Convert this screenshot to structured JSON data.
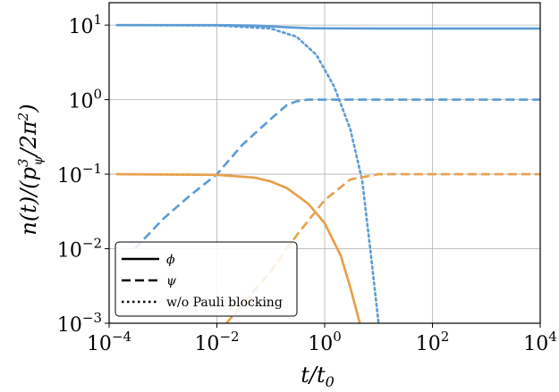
{
  "chart_data": {
    "type": "line",
    "xlabel": "t/t₀",
    "ylabel": "n(t)/(p_ψ³/2π²)",
    "xscale": "log",
    "yscale": "log",
    "xlim": [
      0.0001,
      10000
    ],
    "ylim": [
      0.001,
      20
    ],
    "grid": true,
    "legend_placement": "lower-left",
    "x_ticks": [
      {
        "base": "10",
        "exp": "−4",
        "value": 0.0001
      },
      {
        "base": "10",
        "exp": "−2",
        "value": 0.01
      },
      {
        "base": "10",
        "exp": "0",
        "value": 1
      },
      {
        "base": "10",
        "exp": "2",
        "value": 100
      },
      {
        "base": "10",
        "exp": "4",
        "value": 10000
      }
    ],
    "y_ticks": [
      {
        "base": "10",
        "exp": "−3",
        "value": 0.001
      },
      {
        "base": "10",
        "exp": "−2",
        "value": 0.01
      },
      {
        "base": "10",
        "exp": "−1",
        "value": 0.1
      },
      {
        "base": "10",
        "exp": "0",
        "value": 1
      },
      {
        "base": "10",
        "exp": "1",
        "value": 10
      }
    ],
    "legend": [
      {
        "label": "ϕ",
        "style": "solid"
      },
      {
        "label": "ψ",
        "style": "dashed"
      },
      {
        "label": "w/o Pauli blocking",
        "style": "dotted"
      }
    ],
    "colors": {
      "blue": "#5b9bd5",
      "orange": "#e8a04c"
    },
    "series": [
      {
        "color": "blue",
        "style": "solid",
        "x": [
          0.00014,
          0.01,
          0.05,
          0.1,
          0.2,
          0.5,
          1,
          10,
          10000
        ],
        "y": [
          10,
          9.98,
          9.85,
          9.6,
          9.35,
          9.1,
          9.05,
          9.0,
          9.0
        ]
      },
      {
        "color": "blue",
        "style": "dashed",
        "x": [
          0.0003,
          0.001,
          0.003,
          0.01,
          0.03,
          0.1,
          0.2,
          0.3,
          0.5,
          1,
          10,
          10000
        ],
        "y": [
          0.01,
          0.025,
          0.05,
          0.1,
          0.25,
          0.55,
          0.85,
          0.95,
          1.0,
          1.0,
          1.0,
          1.0
        ]
      },
      {
        "color": "blue",
        "style": "dotted",
        "x": [
          0.00014,
          0.01,
          0.1,
          0.3,
          0.7,
          1.5,
          3,
          5,
          7,
          10
        ],
        "y": [
          10,
          9.9,
          9.0,
          7.0,
          4.0,
          1.5,
          0.4,
          0.08,
          0.01,
          0.001
        ]
      },
      {
        "color": "orange",
        "style": "solid",
        "x": [
          0.00014,
          0.01,
          0.05,
          0.1,
          0.2,
          0.5,
          1,
          2,
          3,
          4.5
        ],
        "y": [
          0.1,
          0.098,
          0.09,
          0.08,
          0.065,
          0.04,
          0.022,
          0.008,
          0.003,
          0.001
        ]
      },
      {
        "color": "orange",
        "style": "dashed",
        "x": [
          0.015,
          0.03,
          0.1,
          0.3,
          1,
          3,
          10,
          10000
        ],
        "y": [
          0.001,
          0.0018,
          0.005,
          0.015,
          0.045,
          0.085,
          0.1,
          0.1
        ]
      },
      {
        "color": "orange",
        "style": "dotted",
        "x": [
          0.00014,
          0.01,
          0.05,
          0.1,
          0.2,
          0.5,
          1,
          2,
          3,
          4.5
        ],
        "y": [
          0.1,
          0.098,
          0.09,
          0.08,
          0.065,
          0.04,
          0.022,
          0.008,
          0.003,
          0.001
        ]
      }
    ]
  }
}
